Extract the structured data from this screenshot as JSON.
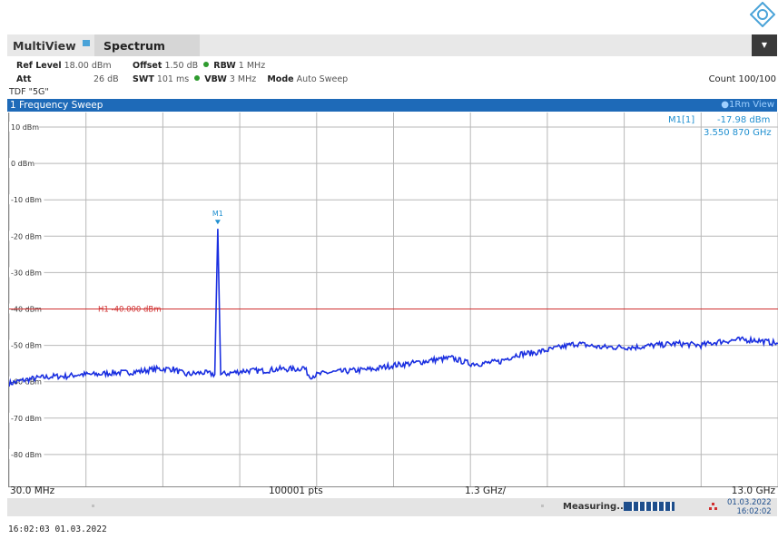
{
  "tabs": {
    "multiview": "MultiView",
    "spectrum": "Spectrum"
  },
  "header": {
    "row1": {
      "ref_level_label": "Ref Level",
      "ref_level_value": "18.00 dBm",
      "offset_label": "Offset",
      "offset_value": "1.50 dB",
      "rbw_label": "RBW",
      "rbw_value": "1 MHz"
    },
    "row2": {
      "att_label": "Att",
      "att_value": "26 dB",
      "swt_label": "SWT",
      "swt_value": "101 ms",
      "vbw_label": "VBW",
      "vbw_value": "3 MHz",
      "mode_label": "Mode",
      "mode_value": "Auto Sweep"
    },
    "count": "Count 100/100",
    "tdf": "TDF \"5G\""
  },
  "window": {
    "title": "1 Frequency Sweep",
    "view": "1Rm View"
  },
  "marker": {
    "name": "M1[1]",
    "level": "-17.98 dBm",
    "freq": "3.550 870 GHz",
    "label": "M1"
  },
  "threshold_line": {
    "label": "H1 -40.000 dBm",
    "value": -40,
    "color": "#d03030"
  },
  "xaxis": {
    "start": "30.0 MHz",
    "points": "100001 pts",
    "per_div": "1.3 GHz/",
    "stop": "13.0 GHz"
  },
  "status": {
    "measuring": "Measuring...",
    "date": "01.03.2022",
    "time": "16:02:02"
  },
  "footer_timestamp": "16:02:03  01.03.2022",
  "colors": {
    "trace": "#1a2fe0",
    "accent": "#1e6ab8",
    "marker": "#1f8fd0"
  },
  "chart_data": {
    "type": "line",
    "title": "1 Frequency Sweep",
    "ylim": [
      -80,
      20
    ],
    "y_ticks": [
      "10 dBm",
      "0 dBm",
      "-10 dBm",
      "-20 dBm",
      "-30 dBm",
      "-40 dBm",
      "-50 dBm",
      "-60 dBm",
      "-70 dBm",
      "-80 dBm"
    ],
    "y_tick_values": [
      10,
      0,
      -10,
      -20,
      -30,
      -40,
      -50,
      -60,
      -70,
      -80
    ],
    "xlim_ghz": [
      0.03,
      13.0
    ],
    "grid": true,
    "series": [
      {
        "x_ghz": [
          0.03,
          0.3,
          0.5,
          0.8,
          1.0,
          1.2,
          1.5,
          1.8,
          2.0,
          2.3,
          2.5,
          2.6,
          2.8,
          3.0,
          3.3,
          3.5,
          3.55,
          3.6,
          3.8,
          4.0,
          4.3,
          4.6,
          4.9,
          5.0,
          5.1,
          5.4,
          5.8,
          6.2,
          6.5,
          6.8,
          7.2,
          7.5,
          7.8,
          8.0,
          8.3,
          8.6,
          8.9,
          9.2,
          9.6,
          10.0,
          10.3,
          10.6,
          10.9,
          11.3,
          11.7,
          12.0,
          12.3,
          12.6,
          13.0
        ],
        "y_dbm": [
          -60.5,
          -59.5,
          -59,
          -58.5,
          -58.5,
          -58,
          -58,
          -57.5,
          -57.5,
          -57,
          -56.5,
          -56.5,
          -56.5,
          -58,
          -57.5,
          -58,
          -17.98,
          -58,
          -57.5,
          -57,
          -57,
          -56.5,
          -56.5,
          -56,
          -58.5,
          -57.5,
          -57,
          -56.5,
          -55.5,
          -55,
          -54,
          -53.5,
          -55,
          -55,
          -54.5,
          -52.5,
          -52,
          -51,
          -49.5,
          -50.5,
          -50.5,
          -50.5,
          -50,
          -49.5,
          -50,
          -49,
          -48.5,
          -48.5,
          -49.5
        ]
      }
    ]
  }
}
